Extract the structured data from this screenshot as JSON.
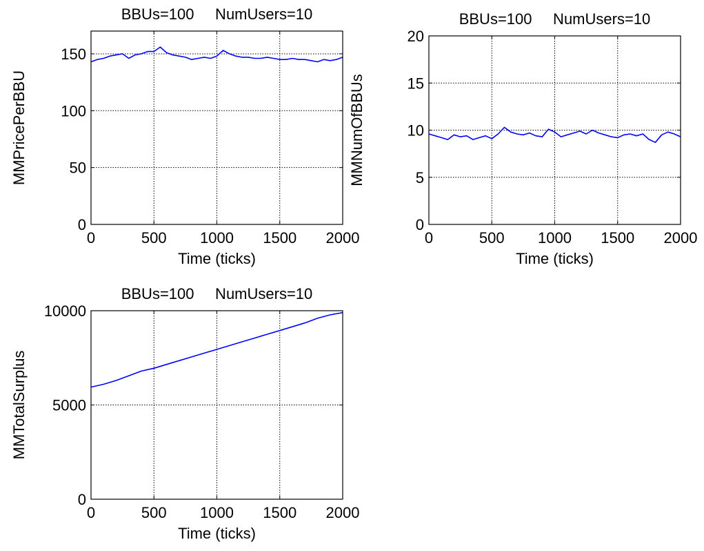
{
  "chart_data": [
    {
      "type": "line",
      "title": "BBUs=100     NumUsers=10",
      "xlabel": "Time (ticks)",
      "ylabel": "MMPricePerBBU",
      "xlim": [
        0,
        2000
      ],
      "ylim": [
        0,
        170
      ],
      "xticks": [
        0,
        500,
        1000,
        1500,
        2000
      ],
      "yticks": [
        0,
        50,
        100,
        150
      ],
      "grid": true,
      "line_color": "#0000ff",
      "series": [
        {
          "x": [
            0,
            50,
            100,
            150,
            200,
            250,
            300,
            350,
            400,
            450,
            500,
            550,
            600,
            650,
            700,
            750,
            800,
            850,
            900,
            950,
            1000,
            1050,
            1100,
            1150,
            1200,
            1250,
            1300,
            1350,
            1400,
            1450,
            1500,
            1550,
            1600,
            1650,
            1700,
            1750,
            1800,
            1850,
            1900,
            1950,
            2000
          ],
          "y": [
            143,
            145,
            146,
            148,
            149,
            150,
            146,
            149,
            150,
            152,
            152,
            156,
            151,
            149,
            148,
            147,
            145,
            146,
            147,
            146,
            148,
            153,
            150,
            148,
            147,
            147,
            146,
            146,
            147,
            146,
            145,
            145,
            146,
            145,
            145,
            144,
            143,
            145,
            144,
            145,
            147
          ]
        }
      ]
    },
    {
      "type": "line",
      "title": "BBUs=100     NumUsers=10",
      "xlabel": "Time (ticks)",
      "ylabel": "MMNumOfBBUs",
      "xlim": [
        0,
        2000
      ],
      "ylim": [
        0,
        20
      ],
      "xticks": [
        0,
        500,
        1000,
        1500,
        2000
      ],
      "yticks": [
        0,
        5,
        10,
        15,
        20
      ],
      "grid": true,
      "line_color": "#0000ff",
      "series": [
        {
          "x": [
            0,
            50,
            100,
            150,
            200,
            250,
            300,
            350,
            400,
            450,
            500,
            550,
            600,
            650,
            700,
            750,
            800,
            850,
            900,
            950,
            1000,
            1050,
            1100,
            1150,
            1200,
            1250,
            1300,
            1350,
            1400,
            1450,
            1500,
            1550,
            1600,
            1650,
            1700,
            1750,
            1800,
            1850,
            1900,
            1950,
            2000
          ],
          "y": [
            9.6,
            9.4,
            9.2,
            9.0,
            9.5,
            9.3,
            9.4,
            9.0,
            9.2,
            9.4,
            9.1,
            9.6,
            10.3,
            9.8,
            9.6,
            9.5,
            9.7,
            9.4,
            9.3,
            10.1,
            9.8,
            9.3,
            9.5,
            9.7,
            9.9,
            9.6,
            10.0,
            9.7,
            9.5,
            9.3,
            9.2,
            9.5,
            9.6,
            9.4,
            9.6,
            9.0,
            8.7,
            9.5,
            9.8,
            9.6,
            9.3
          ]
        }
      ]
    },
    {
      "type": "line",
      "title": "BBUs=100     NumUsers=10",
      "xlabel": "Time (ticks)",
      "ylabel": "MMTotalSurplus",
      "xlim": [
        0,
        2000
      ],
      "ylim": [
        0,
        10000
      ],
      "xticks": [
        0,
        500,
        1000,
        1500,
        2000
      ],
      "yticks": [
        0,
        5000,
        10000
      ],
      "grid": true,
      "line_color": "#0000ff",
      "series": [
        {
          "x": [
            0,
            100,
            200,
            300,
            400,
            500,
            600,
            700,
            800,
            900,
            1000,
            1100,
            1200,
            1300,
            1400,
            1500,
            1600,
            1700,
            1800,
            1900,
            2000
          ],
          "y": [
            5950,
            6100,
            6300,
            6550,
            6800,
            6950,
            7150,
            7350,
            7550,
            7750,
            7950,
            8150,
            8350,
            8550,
            8750,
            8950,
            9150,
            9350,
            9600,
            9780,
            9900
          ]
        }
      ]
    }
  ]
}
